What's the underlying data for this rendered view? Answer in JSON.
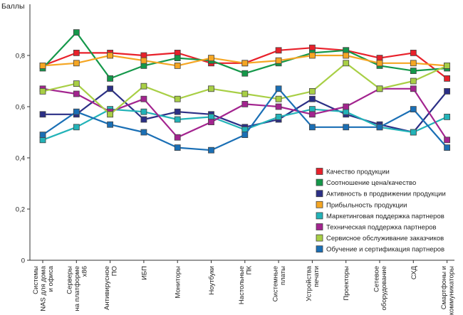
{
  "chart_data": {
    "type": "line",
    "ylabel": "Баллы",
    "ylim": [
      0,
      1
    ],
    "yticks": [
      {
        "value": 0,
        "label": "0"
      },
      {
        "value": 0.2,
        "label": "0,2"
      },
      {
        "value": 0.4,
        "label": "0,4"
      },
      {
        "value": 0.6,
        "label": "0,6"
      },
      {
        "value": 0.8,
        "label": "0,8"
      }
    ],
    "grid": false,
    "legend_position": "right",
    "categories": [
      [
        "Системы",
        "NAS для дома",
        "и офиса"
      ],
      [
        "Серверы",
        "на платформе",
        "x86"
      ],
      [
        "Антивирусное",
        "ПО"
      ],
      [
        "ИБП"
      ],
      [
        "Мониторы"
      ],
      [
        "Ноутбуки"
      ],
      [
        "Настольные",
        "ПК"
      ],
      [
        "Системные",
        "платы"
      ],
      [
        "Устройства",
        "печати"
      ],
      [
        "Проекторы"
      ],
      [
        "Сетевое",
        "оборудование"
      ],
      [
        "СХД"
      ],
      [
        "Смартфоны и",
        "коммуникаторы"
      ]
    ],
    "series": [
      {
        "name": "Качество продукции",
        "color": "#e8202a",
        "values": [
          0.76,
          0.81,
          0.81,
          0.8,
          0.81,
          0.77,
          0.77,
          0.82,
          0.83,
          0.82,
          0.79,
          0.81,
          0.71
        ]
      },
      {
        "name": "Соотношение цена/качество",
        "color": "#14984a",
        "values": [
          0.75,
          0.89,
          0.71,
          0.76,
          0.79,
          0.78,
          0.73,
          0.77,
          0.81,
          0.82,
          0.76,
          0.74,
          0.75
        ]
      },
      {
        "name": "Активность в продвижении продукции",
        "color": "#2b2f86",
        "values": [
          0.57,
          0.57,
          0.67,
          0.55,
          0.58,
          0.57,
          0.52,
          0.55,
          0.63,
          0.57,
          0.53,
          0.5,
          0.66
        ]
      },
      {
        "name": "Прибыльность продукции",
        "color": "#f5a623",
        "values": [
          0.76,
          0.77,
          0.8,
          0.78,
          0.76,
          0.79,
          0.77,
          0.78,
          0.8,
          0.8,
          0.77,
          0.77,
          0.76
        ]
      },
      {
        "name": "Маркетинговая поддержка партнеров",
        "color": "#22b3b8",
        "values": [
          0.47,
          0.52,
          0.59,
          0.58,
          0.55,
          0.56,
          0.51,
          0.56,
          0.59,
          0.58,
          0.52,
          0.5,
          0.56
        ]
      },
      {
        "name": "Техническая поддержка партнеров",
        "color": "#a3248f",
        "values": [
          0.67,
          0.65,
          0.58,
          0.63,
          0.48,
          0.54,
          0.61,
          0.6,
          0.57,
          0.6,
          0.67,
          0.67,
          0.47
        ]
      },
      {
        "name": "Сервисное обслуживание заказчиков",
        "color": "#a8cf45",
        "values": [
          0.66,
          0.69,
          0.57,
          0.68,
          0.63,
          0.67,
          0.65,
          0.63,
          0.66,
          0.77,
          0.67,
          0.7,
          0.76
        ]
      },
      {
        "name": "Обучение и сертификация партнеров",
        "color": "#1a6fb5",
        "values": [
          0.49,
          0.58,
          0.53,
          0.5,
          0.44,
          0.43,
          0.49,
          0.67,
          0.52,
          0.52,
          0.52,
          0.59,
          0.44
        ]
      }
    ]
  }
}
